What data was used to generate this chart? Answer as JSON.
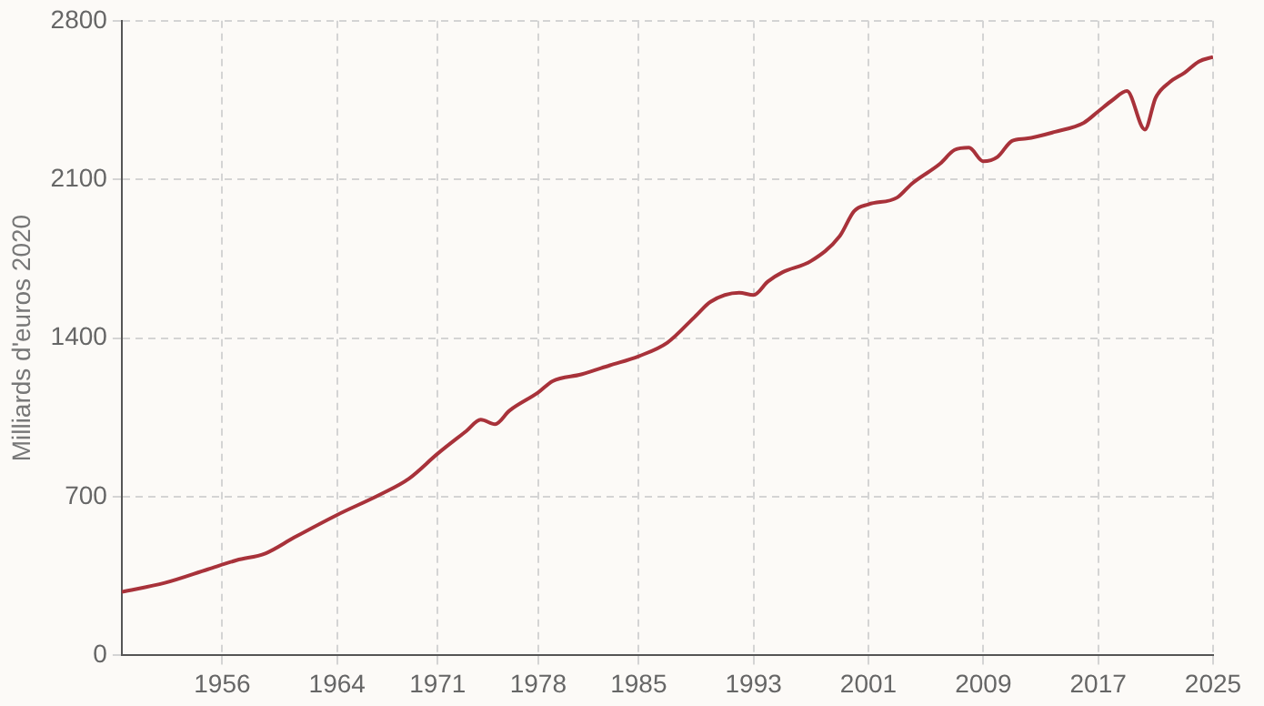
{
  "chart_data": {
    "type": "line",
    "ylabel": "Milliards d'euros 2020",
    "x": [
      1949,
      1952,
      1955,
      1957,
      1959,
      1961,
      1964,
      1967,
      1969,
      1971,
      1973,
      1974,
      1975,
      1976,
      1978,
      1979,
      1981,
      1983,
      1985,
      1987,
      1989,
      1990,
      1992,
      1993,
      1994,
      1995,
      1997,
      1999,
      2000,
      2001,
      2003,
      2004,
      2006,
      2007,
      2008,
      2009,
      2010,
      2011,
      2012,
      2014,
      2016,
      2017,
      2018,
      2019,
      2020.25,
      2021,
      2022,
      2023,
      2024,
      2025
    ],
    "series": [
      {
        "color": "#a8323a",
        "values": [
          280,
          320,
          380,
          420,
          450,
          520,
          620,
          710,
          780,
          890,
          990,
          1040,
          1020,
          1080,
          1160,
          1210,
          1240,
          1280,
          1320,
          1380,
          1500,
          1560,
          1600,
          1590,
          1650,
          1690,
          1740,
          1850,
          1960,
          1990,
          2020,
          2080,
          2170,
          2230,
          2240,
          2180,
          2200,
          2270,
          2280,
          2310,
          2350,
          2400,
          2450,
          2490,
          2320,
          2460,
          2530,
          2570,
          2620,
          2640
        ]
      }
    ],
    "xlim": [
      1949,
      2025
    ],
    "xticks": [
      1956,
      1964,
      1971,
      1978,
      1985,
      1993,
      2001,
      2009,
      2017,
      2025
    ],
    "ylim": [
      0,
      2800
    ],
    "yticks": [
      0,
      700,
      1400,
      2100,
      2800
    ],
    "grid": true,
    "legend": false,
    "marker": "none",
    "line_style": "solid"
  }
}
